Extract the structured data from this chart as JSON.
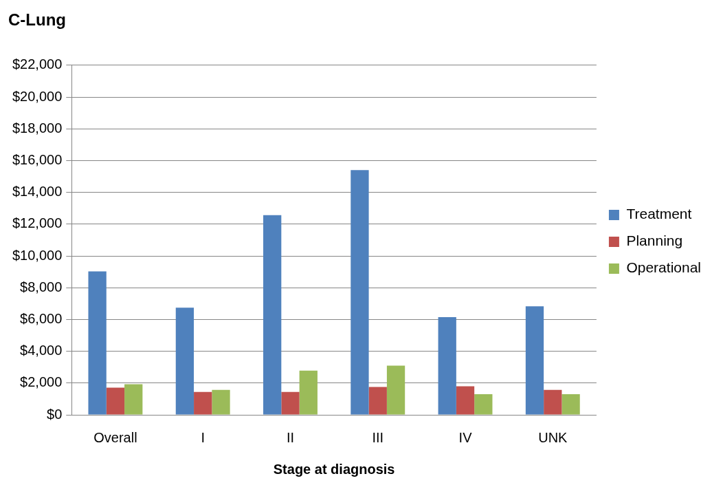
{
  "chart_data": {
    "type": "bar",
    "title": "C-Lung",
    "xlabel": "Stage at diagnosis",
    "categories": [
      "Overall",
      "I",
      "II",
      "III",
      "IV",
      "UNK"
    ],
    "series": [
      {
        "name": "Treatment",
        "color": "#4f81bd",
        "values": [
          9030,
          6740,
          12570,
          15400,
          6150,
          6830
        ]
      },
      {
        "name": "Planning",
        "color": "#c0504d",
        "values": [
          1710,
          1440,
          1440,
          1750,
          1800,
          1570
        ]
      },
      {
        "name": "Operational",
        "color": "#9bbb59",
        "values": [
          1930,
          1570,
          2780,
          3100,
          1300,
          1300
        ]
      }
    ],
    "ylim": [
      0,
      22000
    ],
    "yticks": [
      {
        "value": 0,
        "label": "$0"
      },
      {
        "value": 2000,
        "label": "$2,000"
      },
      {
        "value": 4000,
        "label": "$4,000"
      },
      {
        "value": 6000,
        "label": "$6,000"
      },
      {
        "value": 8000,
        "label": "$8,000"
      },
      {
        "value": 10000,
        "label": "$10,000"
      },
      {
        "value": 12000,
        "label": "$12,000"
      },
      {
        "value": 14000,
        "label": "$14,000"
      },
      {
        "value": 16000,
        "label": "$16,000"
      },
      {
        "value": 18000,
        "label": "$18,000"
      },
      {
        "value": 20000,
        "label": "$20,000"
      },
      {
        "value": 22000,
        "label": "$22,000"
      }
    ],
    "grid": "y",
    "legend": "right"
  }
}
